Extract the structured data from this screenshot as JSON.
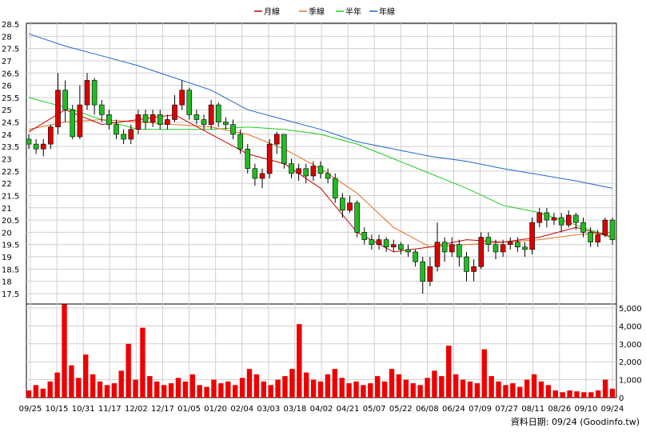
{
  "chart_data": {
    "type": "candlestick",
    "legend": [
      {
        "label": "月線",
        "color": "#cc0000"
      },
      {
        "label": "季線",
        "color": "#e07020"
      },
      {
        "label": "半年",
        "color": "#22cc22"
      },
      {
        "label": "年線",
        "color": "#2266cc"
      }
    ],
    "price_axis": {
      "ylim": [
        17.5,
        28.5
      ],
      "ticks": [
        "28.5",
        "28",
        "27.5",
        "27",
        "26.5",
        "26",
        "25.5",
        "25",
        "24.5",
        "24",
        "23.5",
        "23",
        "22.5",
        "22",
        "21.5",
        "21",
        "20.5",
        "20",
        "19.5",
        "19",
        "18.5",
        "18",
        "17.5"
      ]
    },
    "volume_axis": {
      "ylim": [
        0,
        5000
      ],
      "ticks": [
        "5,000",
        "4,000",
        "3,000",
        "2,000",
        "1,000",
        "0"
      ]
    },
    "x_ticks": [
      "09/25",
      "10/15",
      "10/31",
      "11/17",
      "12/02",
      "12/17",
      "01/05",
      "01/20",
      "02/04",
      "03/03",
      "03/18",
      "04/02",
      "04/21",
      "05/07",
      "05/22",
      "06/08",
      "06/24",
      "07/09",
      "07/27",
      "08/11",
      "08/26",
      "09/10",
      "09/24"
    ],
    "ma_lines": {
      "year": [
        28.1,
        27.6,
        27.2,
        26.8,
        26.3,
        25.8,
        25.0,
        24.6,
        24.2,
        23.7,
        23.4,
        23.1,
        22.9,
        22.6,
        22.35,
        22.1,
        21.8
      ],
      "halfyear": [
        25.5,
        25.1,
        24.6,
        24.2,
        24.2,
        24.2,
        24.3,
        24.2,
        24.0,
        23.6,
        23.0,
        22.4,
        21.8,
        21.1,
        20.8,
        20.3,
        19.8
      ],
      "quarter": [
        24.2,
        24.5,
        24.6,
        24.5,
        24.4,
        24.3,
        24.0,
        23.4,
        22.6,
        21.6,
        20.2,
        19.4,
        19.5,
        19.6,
        19.7,
        19.9,
        20.0
      ],
      "month": [
        24.1,
        25.0,
        24.4,
        24.6,
        24.8,
        24.0,
        23.2,
        22.8,
        21.8,
        20.0,
        19.2,
        19.4,
        19.7,
        19.6,
        19.8,
        20.2,
        19.8
      ]
    },
    "candles": [
      {
        "o": 23.8,
        "c": 23.6,
        "h": 24.0,
        "l": 23.4
      },
      {
        "o": 23.6,
        "c": 23.4,
        "h": 23.8,
        "l": 23.2
      },
      {
        "o": 23.4,
        "c": 23.6,
        "h": 23.8,
        "l": 23.1
      },
      {
        "o": 23.6,
        "c": 24.3,
        "h": 24.4,
        "l": 23.4
      },
      {
        "o": 24.3,
        "c": 25.8,
        "h": 26.5,
        "l": 24.0
      },
      {
        "o": 25.8,
        "c": 25.0,
        "h": 26.2,
        "l": 24.5
      },
      {
        "o": 25.0,
        "c": 23.9,
        "h": 25.2,
        "l": 23.8
      },
      {
        "o": 23.9,
        "c": 25.2,
        "h": 26.0,
        "l": 23.8
      },
      {
        "o": 25.2,
        "c": 26.2,
        "h": 26.5,
        "l": 25.0
      },
      {
        "o": 26.2,
        "c": 25.2,
        "h": 26.3,
        "l": 24.8
      },
      {
        "o": 25.2,
        "c": 24.8,
        "h": 25.4,
        "l": 24.5
      },
      {
        "o": 24.8,
        "c": 24.4,
        "h": 25.0,
        "l": 24.2
      },
      {
        "o": 24.4,
        "c": 24.0,
        "h": 24.6,
        "l": 23.8
      },
      {
        "o": 24.0,
        "c": 23.8,
        "h": 24.2,
        "l": 23.6
      },
      {
        "o": 23.8,
        "c": 24.2,
        "h": 24.4,
        "l": 23.6
      },
      {
        "o": 24.2,
        "c": 24.8,
        "h": 25.0,
        "l": 24.0
      },
      {
        "o": 24.8,
        "c": 24.5,
        "h": 25.0,
        "l": 24.2
      },
      {
        "o": 24.5,
        "c": 24.8,
        "h": 25.0,
        "l": 24.3
      },
      {
        "o": 24.8,
        "c": 24.4,
        "h": 25.0,
        "l": 24.2
      },
      {
        "o": 24.4,
        "c": 24.6,
        "h": 24.8,
        "l": 24.2
      },
      {
        "o": 24.6,
        "c": 25.2,
        "h": 25.6,
        "l": 24.5
      },
      {
        "o": 25.2,
        "c": 25.8,
        "h": 26.2,
        "l": 25.0
      },
      {
        "o": 25.8,
        "c": 24.8,
        "h": 25.9,
        "l": 24.6
      },
      {
        "o": 24.8,
        "c": 24.6,
        "h": 25.0,
        "l": 24.4
      },
      {
        "o": 24.6,
        "c": 24.4,
        "h": 24.8,
        "l": 24.2
      },
      {
        "o": 24.4,
        "c": 25.2,
        "h": 25.4,
        "l": 24.2
      },
      {
        "o": 25.2,
        "c": 24.5,
        "h": 25.3,
        "l": 24.3
      },
      {
        "o": 24.5,
        "c": 24.4,
        "h": 24.7,
        "l": 24.2
      },
      {
        "o": 24.4,
        "c": 24.0,
        "h": 24.6,
        "l": 23.8
      },
      {
        "o": 24.0,
        "c": 23.4,
        "h": 24.2,
        "l": 23.2
      },
      {
        "o": 23.4,
        "c": 22.6,
        "h": 23.6,
        "l": 22.4
      },
      {
        "o": 22.6,
        "c": 22.2,
        "h": 22.8,
        "l": 21.9
      },
      {
        "o": 22.2,
        "c": 22.4,
        "h": 22.6,
        "l": 21.8
      },
      {
        "o": 22.4,
        "c": 23.6,
        "h": 23.8,
        "l": 22.2
      },
      {
        "o": 23.6,
        "c": 24.0,
        "h": 24.1,
        "l": 23.2
      },
      {
        "o": 24.0,
        "c": 22.8,
        "h": 24.0,
        "l": 22.6
      },
      {
        "o": 22.8,
        "c": 22.4,
        "h": 23.0,
        "l": 22.2
      },
      {
        "o": 22.4,
        "c": 22.6,
        "h": 22.8,
        "l": 22.1
      },
      {
        "o": 22.6,
        "c": 22.3,
        "h": 22.8,
        "l": 22.0
      },
      {
        "o": 22.3,
        "c": 22.7,
        "h": 22.9,
        "l": 22.1
      },
      {
        "o": 22.7,
        "c": 22.4,
        "h": 22.9,
        "l": 22.2
      },
      {
        "o": 22.4,
        "c": 22.2,
        "h": 22.6,
        "l": 22.0
      },
      {
        "o": 22.2,
        "c": 21.4,
        "h": 22.4,
        "l": 21.2
      },
      {
        "o": 21.4,
        "c": 20.9,
        "h": 21.6,
        "l": 20.6
      },
      {
        "o": 20.9,
        "c": 21.2,
        "h": 21.5,
        "l": 20.8
      },
      {
        "o": 21.2,
        "c": 20.0,
        "h": 21.3,
        "l": 19.8
      },
      {
        "o": 20.0,
        "c": 19.7,
        "h": 20.2,
        "l": 19.5
      },
      {
        "o": 19.7,
        "c": 19.5,
        "h": 19.9,
        "l": 19.3
      },
      {
        "o": 19.5,
        "c": 19.7,
        "h": 19.9,
        "l": 19.3
      },
      {
        "o": 19.7,
        "c": 19.4,
        "h": 19.8,
        "l": 19.2
      },
      {
        "o": 19.4,
        "c": 19.5,
        "h": 19.7,
        "l": 19.2
      },
      {
        "o": 19.5,
        "c": 19.3,
        "h": 19.6,
        "l": 19.1
      },
      {
        "o": 19.3,
        "c": 19.2,
        "h": 19.5,
        "l": 19.0
      },
      {
        "o": 19.2,
        "c": 18.8,
        "h": 19.3,
        "l": 18.6
      },
      {
        "o": 18.8,
        "c": 18.0,
        "h": 19.0,
        "l": 17.5
      },
      {
        "o": 18.0,
        "c": 18.6,
        "h": 19.0,
        "l": 17.8
      },
      {
        "o": 18.6,
        "c": 19.6,
        "h": 20.4,
        "l": 18.4
      },
      {
        "o": 19.6,
        "c": 19.2,
        "h": 19.8,
        "l": 18.8
      },
      {
        "o": 19.2,
        "c": 19.5,
        "h": 19.8,
        "l": 19.0
      },
      {
        "o": 19.5,
        "c": 19.0,
        "h": 19.7,
        "l": 18.6
      },
      {
        "o": 19.0,
        "c": 18.4,
        "h": 19.2,
        "l": 18.0
      },
      {
        "o": 18.4,
        "c": 18.6,
        "h": 18.9,
        "l": 18.0
      },
      {
        "o": 18.6,
        "c": 19.8,
        "h": 20.0,
        "l": 18.5
      },
      {
        "o": 19.8,
        "c": 19.5,
        "h": 20.0,
        "l": 19.2
      },
      {
        "o": 19.5,
        "c": 19.2,
        "h": 19.7,
        "l": 18.9
      },
      {
        "o": 19.2,
        "c": 19.5,
        "h": 19.7,
        "l": 19.0
      },
      {
        "o": 19.5,
        "c": 19.6,
        "h": 19.8,
        "l": 19.3
      },
      {
        "o": 19.6,
        "c": 19.4,
        "h": 19.8,
        "l": 19.2
      },
      {
        "o": 19.4,
        "c": 19.3,
        "h": 19.6,
        "l": 19.0
      },
      {
        "o": 19.3,
        "c": 20.4,
        "h": 20.6,
        "l": 19.1
      },
      {
        "o": 20.4,
        "c": 20.8,
        "h": 21.0,
        "l": 20.2
      },
      {
        "o": 20.8,
        "c": 20.5,
        "h": 21.0,
        "l": 20.2
      },
      {
        "o": 20.5,
        "c": 20.6,
        "h": 20.8,
        "l": 20.3
      },
      {
        "o": 20.6,
        "c": 20.3,
        "h": 20.8,
        "l": 20.0
      },
      {
        "o": 20.3,
        "c": 20.7,
        "h": 20.9,
        "l": 20.2
      },
      {
        "o": 20.7,
        "c": 20.4,
        "h": 20.8,
        "l": 20.1
      },
      {
        "o": 20.4,
        "c": 20.0,
        "h": 20.6,
        "l": 19.8
      },
      {
        "o": 20.0,
        "c": 19.6,
        "h": 20.2,
        "l": 19.4
      },
      {
        "o": 19.6,
        "c": 19.9,
        "h": 20.1,
        "l": 19.4
      },
      {
        "o": 19.9,
        "c": 20.5,
        "h": 20.6,
        "l": 19.8
      },
      {
        "o": 20.5,
        "c": 19.7,
        "h": 20.6,
        "l": 19.5
      }
    ],
    "volumes": [
      400,
      700,
      500,
      900,
      1400,
      5200,
      1800,
      1100,
      2400,
      1300,
      900,
      700,
      800,
      1500,
      3000,
      1000,
      3900,
      1200,
      900,
      700,
      800,
      1100,
      900,
      1300,
      700,
      600,
      1000,
      800,
      900,
      700,
      1100,
      1600,
      1300,
      900,
      700,
      1000,
      1200,
      1600,
      4100,
      1400,
      1000,
      900,
      1300,
      1600,
      1100,
      800,
      900,
      700,
      800,
      1200,
      900,
      1600,
      1300,
      1000,
      800,
      700,
      1100,
      1500,
      1200,
      2900,
      1300,
      1000,
      900,
      800,
      2700,
      1200,
      900,
      700,
      800,
      600,
      1000,
      1300,
      900,
      700,
      400,
      300,
      400,
      350,
      300,
      300,
      400,
      1000,
      500
    ]
  },
  "footer": {
    "label": "資料日期: 09/24  (Goodinfo.tw)"
  }
}
